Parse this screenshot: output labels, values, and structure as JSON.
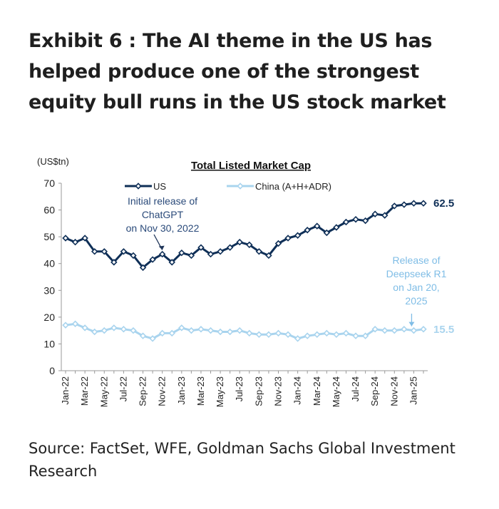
{
  "headline": "Exhibit 6 : The AI theme in the US has helped produce one of the strongest equity bull runs in the US stock market",
  "source": "Source: FactSet, WFE, Goldman Sachs Global Investment Research",
  "chart_data": {
    "type": "line",
    "title": "Total Listed Market Cap",
    "ylabel": "(US$tn)",
    "ylim": [
      0,
      70
    ],
    "yticks": [
      0,
      10,
      20,
      30,
      40,
      50,
      60,
      70
    ],
    "grid": false,
    "legend": "top",
    "x": [
      "Jan-22",
      "Feb-22",
      "Mar-22",
      "Apr-22",
      "May-22",
      "Jun-22",
      "Jul-22",
      "Aug-22",
      "Sep-22",
      "Oct-22",
      "Nov-22",
      "Dec-22",
      "Jan-23",
      "Feb-23",
      "Mar-23",
      "Apr-23",
      "May-23",
      "Jun-23",
      "Jul-23",
      "Aug-23",
      "Sep-23",
      "Oct-23",
      "Nov-23",
      "Dec-23",
      "Jan-24",
      "Feb-24",
      "Mar-24",
      "Apr-24",
      "May-24",
      "Jun-24",
      "Jul-24",
      "Aug-24",
      "Sep-24",
      "Oct-24",
      "Nov-24",
      "Dec-24",
      "Jan-25",
      "Feb-25"
    ],
    "xtick_labels": [
      "Jan-22",
      "Mar-22",
      "May-22",
      "Jul-22",
      "Sep-22",
      "Nov-22",
      "Jan-23",
      "Mar-23",
      "May-23",
      "Jul-23",
      "Sep-23",
      "Nov-23",
      "Jan-24",
      "Mar-24",
      "May-24",
      "Jul-24",
      "Sep-24",
      "Nov-24",
      "Jan-25"
    ],
    "series": [
      {
        "name": "US",
        "color": "#0f2f57",
        "values": [
          49.5,
          48,
          49.5,
          44.5,
          44.5,
          40.5,
          44.5,
          43,
          38.5,
          41.5,
          43.5,
          40.5,
          44,
          43,
          46,
          43.5,
          44.5,
          46,
          48,
          47,
          44.5,
          43,
          47.5,
          49.5,
          50.5,
          52.5,
          54,
          51.5,
          53.5,
          55.5,
          56.5,
          56,
          58.5,
          58,
          61.5,
          62,
          62.5,
          62.5
        ],
        "end_label": "62.5"
      },
      {
        "name": "China (A+H+ADR)",
        "color": "#a9d4ee",
        "values": [
          17,
          17.5,
          16,
          14.5,
          15,
          16,
          15.5,
          15,
          13,
          12,
          14,
          14,
          16,
          15,
          15.5,
          15,
          14.5,
          14.5,
          15,
          14,
          13.5,
          13.5,
          14,
          13.5,
          12,
          13,
          13.5,
          14,
          13.5,
          14,
          13,
          13,
          15.5,
          15,
          15,
          15.5,
          15,
          15.5
        ],
        "end_label": "15.5"
      }
    ],
    "annotations": [
      {
        "text": [
          "Initial release of",
          "ChatGPT",
          "on Nov 30, 2022"
        ],
        "x": "Nov-22",
        "series": "US",
        "color": "#2a4a7a"
      },
      {
        "text": [
          "Release of",
          "Deepseek R1",
          "on Jan 20,",
          "2025"
        ],
        "x": "Jan-25",
        "series": "China (A+H+ADR)",
        "color": "#7fbde6"
      }
    ]
  }
}
